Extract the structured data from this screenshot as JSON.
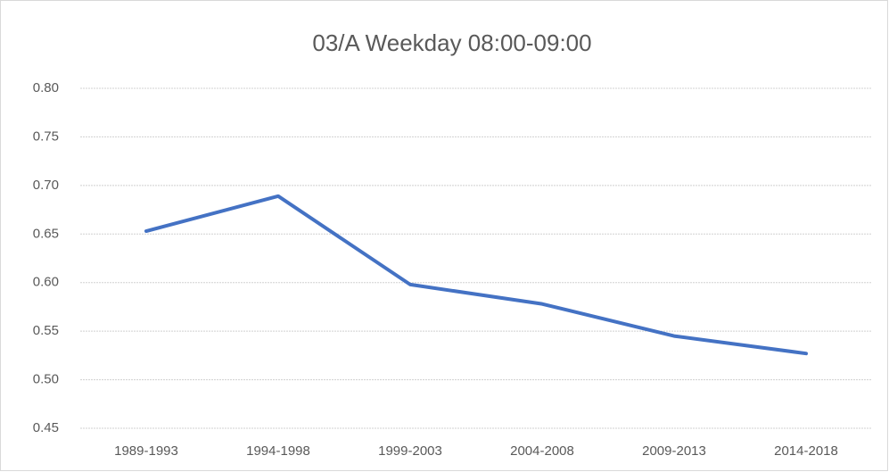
{
  "chart_data": {
    "type": "line",
    "title": "03/A Weekday 08:00-09:00",
    "categories": [
      "1989-1993",
      "1994-1998",
      "1999-2003",
      "2004-2008",
      "2009-2013",
      "2014-2018"
    ],
    "series": [
      {
        "color": "#4472c4",
        "values": [
          0.653,
          0.689,
          0.598,
          0.578,
          0.545,
          0.527
        ]
      }
    ],
    "ylim": [
      0.45,
      0.8
    ],
    "yticks": [
      0.45,
      {
        "value": 0.5,
        "label": "0.50"
      },
      0.55,
      {
        "value": 0.6,
        "label": "0.60"
      },
      0.65,
      {
        "value": 0.7,
        "label": "0.70"
      },
      0.75,
      {
        "value": 0.8,
        "label": "0.80"
      }
    ],
    "grid": true
  }
}
